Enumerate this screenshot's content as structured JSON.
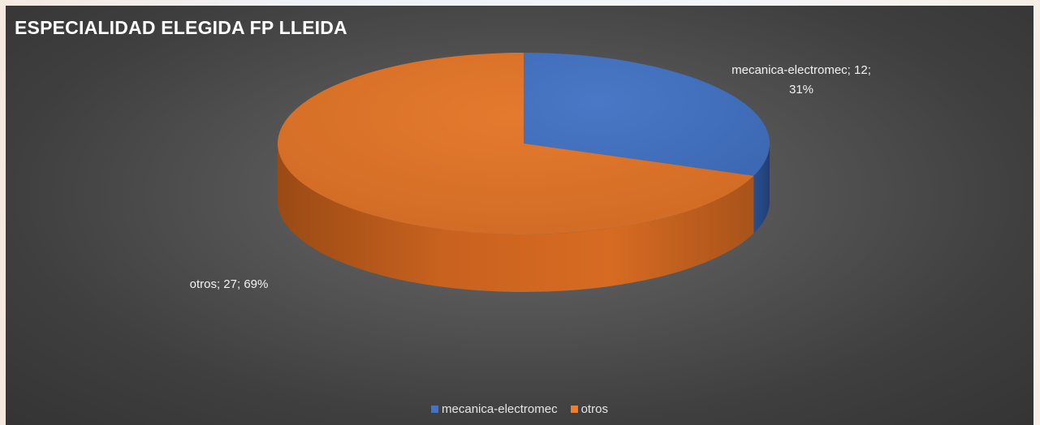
{
  "chart_data": {
    "type": "pie",
    "title": "ESPECIALIDAD ELEGIDA FP LLEIDA",
    "slices": [
      {
        "name": "mecanica-electromec",
        "value": 12,
        "percent": "31%",
        "label_line1": "mecanica-electromec; 12;",
        "label_line2": "31%",
        "color": "#4472c4"
      },
      {
        "name": "otros",
        "value": 27,
        "percent": "69%",
        "label_line1": "otros; 27; 69%",
        "label_line2": "",
        "color": "#ed7d31"
      }
    ],
    "legend": {
      "placement": "bottom",
      "entries": [
        "mecanica-electromec",
        "otros"
      ]
    },
    "style_3d": true,
    "background": "dark-gradient"
  }
}
